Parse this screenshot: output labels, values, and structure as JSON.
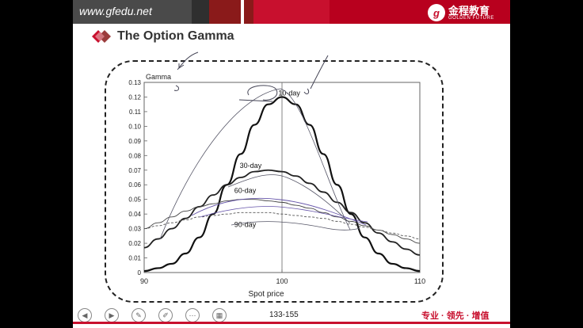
{
  "header": {
    "site": "www.gfedu.net",
    "brand_cn": "金程教育",
    "brand_en": "GOLDEN FUTURE"
  },
  "slide_title": "The Option Gamma",
  "chart_data": {
    "type": "line",
    "ylabel": "Gamma",
    "xlabel": "Spot price",
    "xlim": [
      90,
      110
    ],
    "ylim": [
      0,
      0.13
    ],
    "x_ticks": [
      "90",
      "100",
      "110"
    ],
    "y_ticks": [
      "0",
      "0.01",
      "0.02",
      "0.03",
      "0.04",
      "0.05",
      "0.06",
      "0.07",
      "0.08",
      "0.09",
      "0.10",
      "0.11",
      "0.12",
      "0.13"
    ],
    "x": [
      90,
      91,
      92,
      93,
      94,
      95,
      96,
      97,
      98,
      99,
      100,
      101,
      102,
      103,
      104,
      105,
      106,
      107,
      108,
      109,
      110
    ],
    "series": [
      {
        "name": "10-day",
        "values": [
          0.001,
          0.003,
          0.006,
          0.013,
          0.024,
          0.04,
          0.06,
          0.081,
          0.101,
          0.115,
          0.12,
          0.115,
          0.101,
          0.081,
          0.06,
          0.04,
          0.024,
          0.013,
          0.006,
          0.003,
          0.001
        ]
      },
      {
        "name": "30-day",
        "values": [
          0.017,
          0.023,
          0.03,
          0.037,
          0.045,
          0.053,
          0.06,
          0.065,
          0.069,
          0.07,
          0.069,
          0.066,
          0.061,
          0.055,
          0.048,
          0.041,
          0.034,
          0.027,
          0.021,
          0.016,
          0.012
        ]
      },
      {
        "name": "60-day",
        "values": [
          0.03,
          0.034,
          0.038,
          0.042,
          0.045,
          0.047,
          0.049,
          0.05,
          0.05,
          0.049,
          0.048,
          0.046,
          0.044,
          0.041,
          0.038,
          0.035,
          0.032,
          0.029,
          0.026,
          0.023,
          0.02
        ]
      },
      {
        "name": "90-day",
        "values": [
          0.03,
          0.032,
          0.034,
          0.036,
          0.038,
          0.039,
          0.04,
          0.041,
          0.041,
          0.041,
          0.04,
          0.039,
          0.038,
          0.037,
          0.035,
          0.033,
          0.031,
          0.029,
          0.027,
          0.025,
          0.023
        ]
      }
    ]
  },
  "footer": {
    "page_number": "133-155",
    "slogan": "专业 · 领先 · 增值"
  }
}
